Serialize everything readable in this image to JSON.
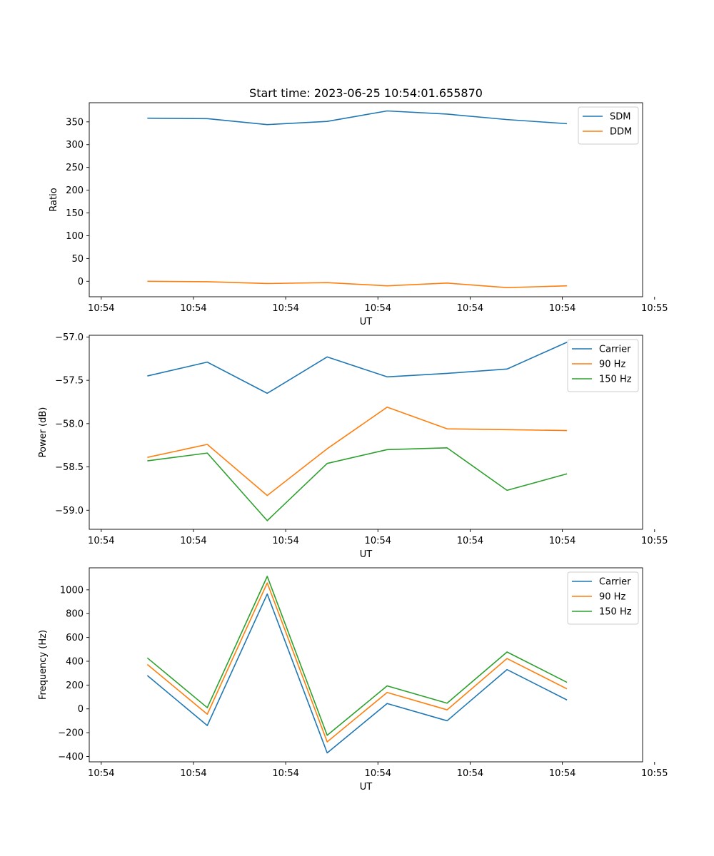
{
  "figure": {
    "title": "Start time: 2023-06-25 10:54:01.655870"
  },
  "chart_data": [
    {
      "type": "line",
      "title": "Start time: 2023-06-25 10:54:01.655870",
      "xlabel": "UT",
      "ylabel": "Ratio",
      "x_tick_labels": [
        "10:54",
        "10:54",
        "10:54",
        "10:54",
        "10:54",
        "10:54",
        "10:55"
      ],
      "x_ticks": [
        0,
        1,
        2,
        3,
        4,
        5,
        6
      ],
      "xlim": [
        -0.13,
        5.87
      ],
      "ylim": [
        -34,
        392
      ],
      "y_ticks": [
        0,
        50,
        100,
        150,
        200,
        250,
        300,
        350
      ],
      "x": [
        0.5,
        1.15,
        1.8,
        2.45,
        3.1,
        3.75,
        4.4,
        5.05
      ],
      "legend_position": "top-right",
      "grid": false,
      "series": [
        {
          "name": "SDM",
          "color": "#1f77b4",
          "values": [
            358,
            357,
            344,
            351,
            374,
            367,
            355,
            346
          ]
        },
        {
          "name": "DDM",
          "color": "#ff7f0e",
          "values": [
            0,
            -1,
            -5,
            -3,
            -10,
            -4,
            -14,
            -10
          ]
        }
      ]
    },
    {
      "type": "line",
      "xlabel": "UT",
      "ylabel": "Power (dB)",
      "x_tick_labels": [
        "10:54",
        "10:54",
        "10:54",
        "10:54",
        "10:54",
        "10:54",
        "10:55"
      ],
      "x_ticks": [
        0,
        1,
        2,
        3,
        4,
        5,
        6
      ],
      "xlim": [
        -0.13,
        5.87
      ],
      "ylim": [
        -59.22,
        -56.98
      ],
      "y_ticks": [
        -59.0,
        -58.5,
        -58.0,
        -57.5,
        -57.0
      ],
      "y_tick_labels": [
        "−59.0",
        "−58.5",
        "−58.0",
        "−57.5",
        "−57.0"
      ],
      "x": [
        0.5,
        1.15,
        1.8,
        2.45,
        3.1,
        3.75,
        4.4,
        5.05
      ],
      "legend_position": "top-right",
      "grid": false,
      "series": [
        {
          "name": "Carrier",
          "color": "#1f77b4",
          "values": [
            -57.45,
            -57.29,
            -57.65,
            -57.23,
            -57.46,
            -57.42,
            -57.37,
            -57.06
          ]
        },
        {
          "name": "90 Hz",
          "color": "#ff7f0e",
          "values": [
            -58.39,
            -58.24,
            -58.83,
            -58.29,
            -57.81,
            -58.06,
            -58.07,
            -58.08
          ]
        },
        {
          "name": "150 Hz",
          "color": "#2ca02c",
          "values": [
            -58.43,
            -58.34,
            -59.12,
            -58.46,
            -58.3,
            -58.28,
            -58.77,
            -58.58
          ]
        }
      ]
    },
    {
      "type": "line",
      "xlabel": "UT",
      "ylabel": "Frequency (Hz)",
      "x_tick_labels": [
        "10:54",
        "10:54",
        "10:54",
        "10:54",
        "10:54",
        "10:54",
        "10:55"
      ],
      "x_ticks": [
        0,
        1,
        2,
        3,
        4,
        5,
        6
      ],
      "xlim": [
        -0.13,
        5.87
      ],
      "ylim": [
        -445,
        1185
      ],
      "y_ticks": [
        -400,
        -200,
        0,
        200,
        400,
        600,
        800,
        1000
      ],
      "y_tick_labels": [
        "−400",
        "−200",
        "0",
        "200",
        "400",
        "600",
        "800",
        "1000"
      ],
      "x": [
        0.5,
        1.15,
        1.8,
        2.45,
        3.1,
        3.75,
        4.4,
        5.05
      ],
      "legend_position": "top-right",
      "grid": false,
      "series": [
        {
          "name": "Carrier",
          "color": "#1f77b4",
          "values": [
            280,
            -140,
            965,
            -370,
            45,
            -100,
            330,
            75
          ]
        },
        {
          "name": "90 Hz",
          "color": "#ff7f0e",
          "values": [
            373,
            -45,
            1058,
            -277,
            138,
            -8,
            423,
            168
          ]
        },
        {
          "name": "150 Hz",
          "color": "#2ca02c",
          "values": [
            428,
            10,
            1113,
            -222,
            193,
            48,
            478,
            223
          ]
        }
      ]
    }
  ]
}
